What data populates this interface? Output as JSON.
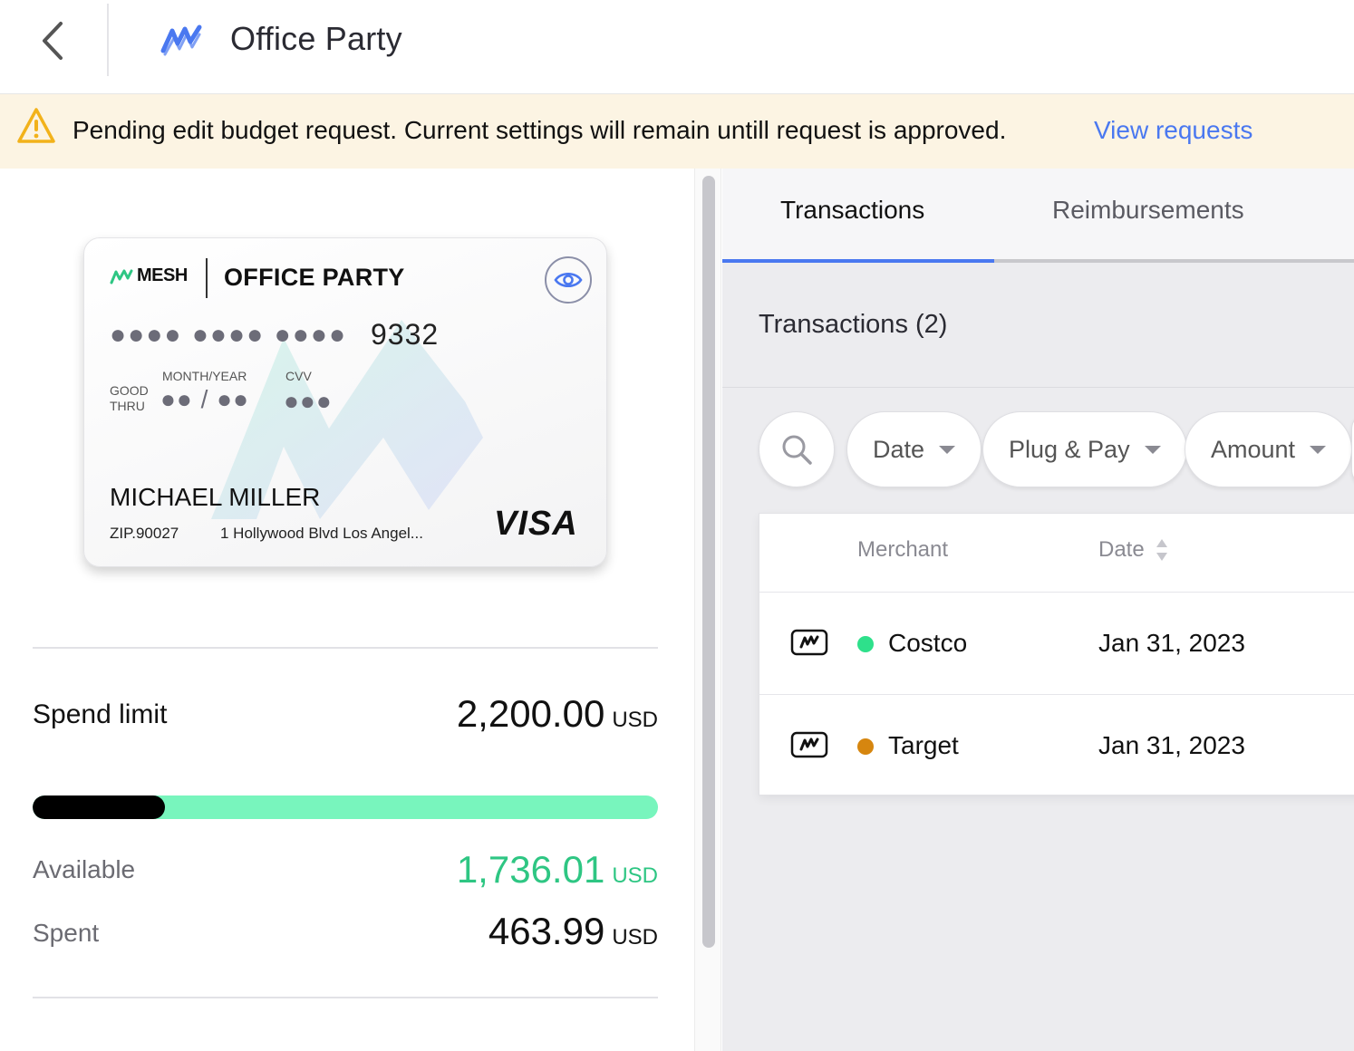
{
  "header": {
    "title": "Office Party"
  },
  "banner": {
    "message": "Pending edit budget request. Current settings will remain untill request is approved.",
    "link": "View requests"
  },
  "card": {
    "brand": "MESH",
    "name": "OFFICE PARTY",
    "masked_groups": "●●●● ●●●● ●●●●",
    "last4": "9332",
    "good_thru_line1": "GOOD",
    "good_thru_line2": "THRU",
    "expiry_label": "MONTH/YEAR",
    "expiry_value": "●● / ●●",
    "cvv_label": "CVV",
    "cvv_value": "●●●",
    "holder": "MICHAEL MILLER",
    "zip": "ZIP.90027",
    "address": "1 Hollywood Blvd Los Angel...",
    "network": "VISA"
  },
  "budget": {
    "spend_limit_label": "Spend limit",
    "spend_limit_value": "2,200.00",
    "currency": "USD",
    "available_label": "Available",
    "available_value": "1,736.01",
    "spent_label": "Spent",
    "spent_value": "463.99",
    "spent_fraction": 0.2109
  },
  "tabs": [
    {
      "label": "Transactions",
      "active": true
    },
    {
      "label": "Reimbursements",
      "active": false
    }
  ],
  "transactions": {
    "heading": "Transactions (2)",
    "filters": [
      "Date",
      "Plug & Pay",
      "Amount"
    ],
    "columns": {
      "merchant": "Merchant",
      "date": "Date"
    },
    "rows": [
      {
        "merchant": "Costco",
        "date": "Jan 31, 2023",
        "status_color": "#2ee08b"
      },
      {
        "merchant": "Target",
        "date": "Jan 31, 2023",
        "status_color": "#d6860f"
      }
    ]
  },
  "colors": {
    "accent": "#4a78f0",
    "available": "#2ec683",
    "progress_track": "#78f5bd",
    "banner_bg": "#fcf4e3",
    "warning": "#f2b21b"
  },
  "icons": [
    "chevron-left-icon",
    "mesh-logo-icon",
    "warning-icon",
    "eye-icon",
    "search-icon",
    "card-icon",
    "sort-icon"
  ]
}
